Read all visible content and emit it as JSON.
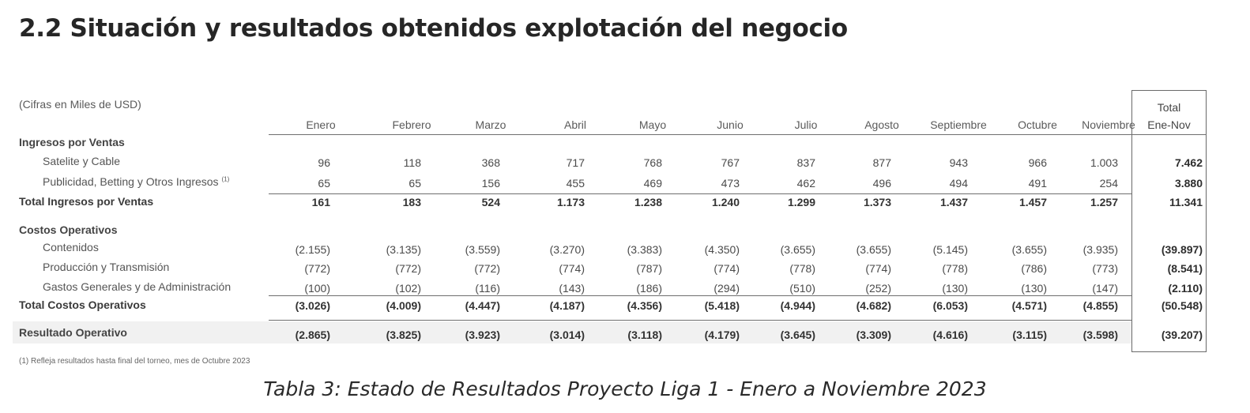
{
  "title": "2.2 Situación y resultados obtenidos explotación del negocio",
  "units": "(Cifras en Miles de USD)",
  "months": [
    "Enero",
    "Febrero",
    "Marzo",
    "Abril",
    "Mayo",
    "Junio",
    "Julio",
    "Agosto",
    "Septiembre",
    "Octubre",
    "Noviembre"
  ],
  "total_header": [
    "Total",
    "Ene-Nov"
  ],
  "sections": {
    "ingresos": "Ingresos por Ventas",
    "costos": "Costos Operativos"
  },
  "rows": {
    "satelite": {
      "label": "Satelite y Cable",
      "values": [
        "96",
        "118",
        "368",
        "717",
        "768",
        "767",
        "837",
        "877",
        "943",
        "966",
        "1.003"
      ],
      "total": "7.462"
    },
    "publicidad": {
      "label": "Publicidad, Betting y Otros Ingresos",
      "note": "(1)",
      "values": [
        "65",
        "65",
        "156",
        "455",
        "469",
        "473",
        "462",
        "496",
        "494",
        "491",
        "254"
      ],
      "total": "3.880"
    },
    "total_ingresos": {
      "label": "Total Ingresos por Ventas",
      "values": [
        "161",
        "183",
        "524",
        "1.173",
        "1.238",
        "1.240",
        "1.299",
        "1.373",
        "1.437",
        "1.457",
        "1.257"
      ],
      "total": "11.341"
    },
    "contenidos": {
      "label": "Contenidos",
      "values": [
        "(2.155)",
        "(3.135)",
        "(3.559)",
        "(3.270)",
        "(3.383)",
        "(4.350)",
        "(3.655)",
        "(3.655)",
        "(5.145)",
        "(3.655)",
        "(3.935)"
      ],
      "total": "(39.897)"
    },
    "produccion": {
      "label": "Producción y Transmisión",
      "values": [
        "(772)",
        "(772)",
        "(772)",
        "(774)",
        "(787)",
        "(774)",
        "(778)",
        "(774)",
        "(778)",
        "(786)",
        "(773)"
      ],
      "total": "(8.541)"
    },
    "gastos": {
      "label": "Gastos Generales y de Administración",
      "values": [
        "(100)",
        "(102)",
        "(116)",
        "(143)",
        "(186)",
        "(294)",
        "(510)",
        "(252)",
        "(130)",
        "(130)",
        "(147)"
      ],
      "total": "(2.110)"
    },
    "total_costos": {
      "label": "Total Costos Operativos",
      "values": [
        "(3.026)",
        "(4.009)",
        "(4.447)",
        "(4.187)",
        "(4.356)",
        "(5.418)",
        "(4.944)",
        "(4.682)",
        "(6.053)",
        "(4.571)",
        "(4.855)"
      ],
      "total": "(50.548)"
    },
    "resultado": {
      "label": "Resultado Operativo",
      "values": [
        "(2.865)",
        "(3.825)",
        "(3.923)",
        "(3.014)",
        "(3.118)",
        "(4.179)",
        "(3.645)",
        "(3.309)",
        "(4.616)",
        "(3.115)",
        "(3.598)"
      ],
      "total": "(39.207)"
    }
  },
  "footnote": "(1) Refleja resultados hasta final del torneo, mes de Octubre 2023",
  "caption": "Tabla 3: Estado de Resultados Proyecto Liga 1 - Enero a Noviembre 2023"
}
